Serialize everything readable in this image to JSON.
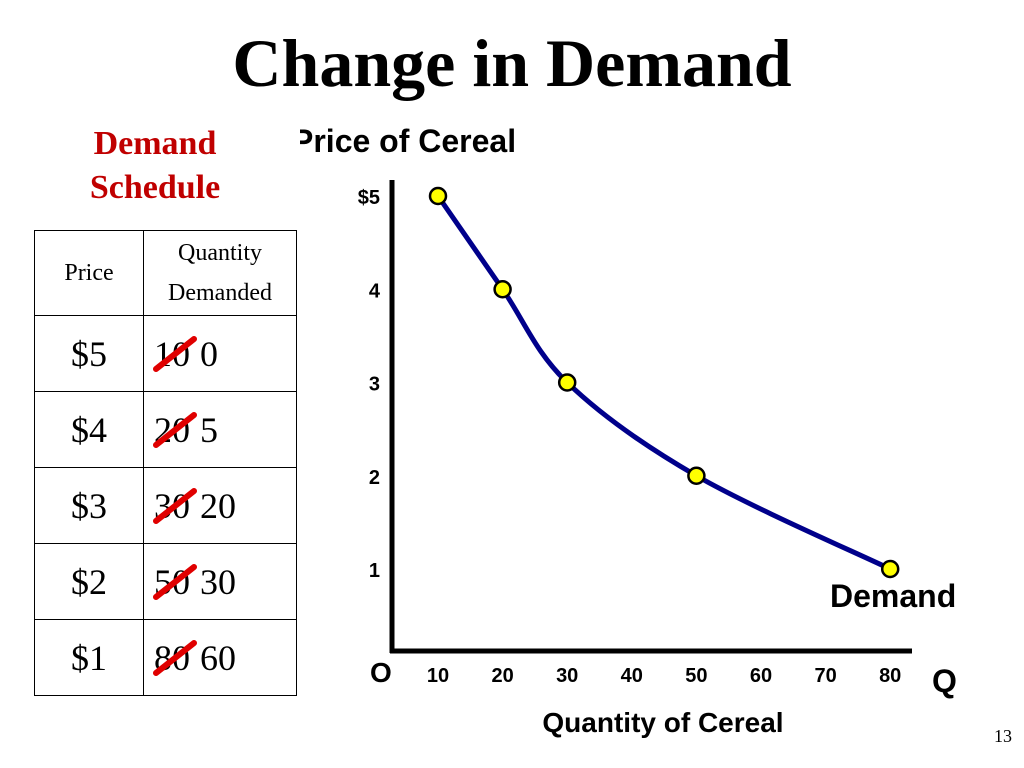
{
  "slide": {
    "title": "Change in Demand",
    "number": "13"
  },
  "schedule": {
    "heading_line1": "Demand",
    "heading_line2": "Schedule",
    "col_price": "Price",
    "col_qty_line1": "Quantity",
    "col_qty_line2": "Demanded",
    "rows": [
      {
        "price": "$5",
        "old_qty": "10",
        "new_qty": "0"
      },
      {
        "price": "$4",
        "old_qty": "20",
        "new_qty": "5"
      },
      {
        "price": "$3",
        "old_qty": "30",
        "new_qty": "20"
      },
      {
        "price": "$2",
        "old_qty": "50",
        "new_qty": "30"
      },
      {
        "price": "$1",
        "old_qty": "80",
        "new_qty": "60"
      }
    ],
    "strike_color": "#e00000"
  },
  "chart_data": {
    "type": "line",
    "title": "Price of Cereal",
    "xlabel": "Quantity of Cereal",
    "ylabel": "Price of Cereal",
    "x_axis_symbol": "Q",
    "origin_label": "O",
    "x_ticks": [
      "10",
      "20",
      "30",
      "40",
      "50",
      "60",
      "70",
      "80"
    ],
    "y_ticks": [
      "$5",
      "4",
      "3",
      "2",
      "1"
    ],
    "xlim": [
      0,
      80
    ],
    "ylim": [
      0,
      5
    ],
    "series": [
      {
        "name": "Demand",
        "points": [
          {
            "x": 10,
            "y": 5
          },
          {
            "x": 20,
            "y": 4
          },
          {
            "x": 30,
            "y": 3
          },
          {
            "x": 50,
            "y": 2
          },
          {
            "x": 80,
            "y": 1
          }
        ]
      }
    ],
    "curve_color": "#00008b",
    "point_color": "#ffff00"
  }
}
